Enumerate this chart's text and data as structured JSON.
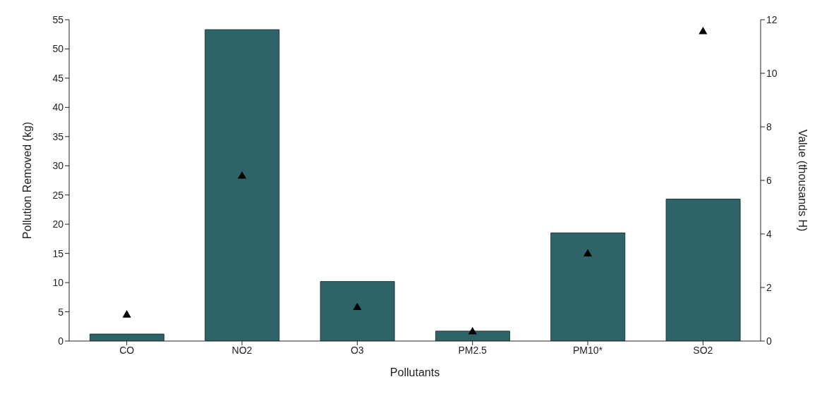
{
  "chart_data": {
    "type": "bar",
    "xlabel": "Pollutants",
    "ylabel": "Pollution Removed (kg)",
    "y2label": "Value (thousands H)",
    "categories": [
      "CO",
      "NO2",
      "O3",
      "PM2.5",
      "PM10*",
      "SO2"
    ],
    "series": [
      {
        "color": "#2e6468",
        "values": [
          1.2,
          53.3,
          10.2,
          1.7,
          18.5,
          24.3
        ]
      },
      {
        "type": "scatter",
        "axis": "y2",
        "color": "#000000",
        "values": [
          0.97,
          6.16,
          1.25,
          0.34,
          3.25,
          11.55
        ]
      }
    ],
    "marker": "triangle",
    "grid": false,
    "legend": false,
    "ylim": [
      0,
      55
    ],
    "yticks": [
      0,
      5,
      10,
      15,
      20,
      25,
      30,
      35,
      40,
      45,
      50,
      55
    ],
    "y2lim": [
      0,
      12
    ],
    "y2ticks": [
      0,
      2,
      4,
      6,
      8,
      10,
      12
    ]
  }
}
